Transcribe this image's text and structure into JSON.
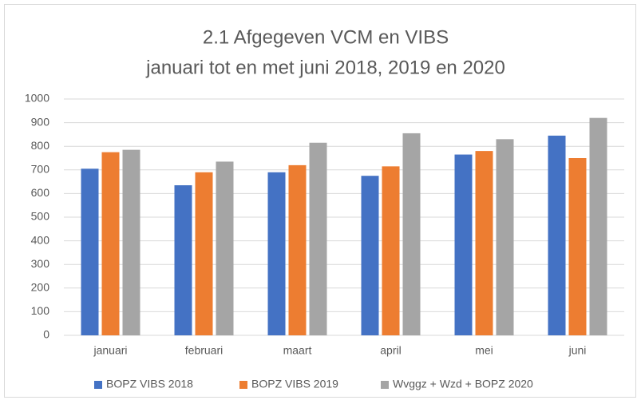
{
  "chart_data": {
    "type": "bar",
    "title": "2.1 Afgegeven VCM en VIBS",
    "subtitle": "januari tot en met juni 2018, 2019 en 2020",
    "categories": [
      "januari",
      "februari",
      "maart",
      "april",
      "mei",
      "juni"
    ],
    "series": [
      {
        "name": "BOPZ VIBS 2018",
        "color": "#4472c4",
        "values": [
          705,
          635,
          690,
          675,
          765,
          845
        ]
      },
      {
        "name": "BOPZ VIBS 2019",
        "color": "#ed7d31",
        "values": [
          775,
          690,
          720,
          715,
          780,
          750
        ]
      },
      {
        "name": "Wvggz + Wzd + BOPZ 2020",
        "color": "#a5a5a5",
        "values": [
          785,
          735,
          815,
          855,
          830,
          920
        ]
      }
    ],
    "ylim": [
      0,
      1000
    ],
    "yticks": [
      0,
      100,
      200,
      300,
      400,
      500,
      600,
      700,
      800,
      900,
      1000
    ],
    "grid": true,
    "legend": "bottom"
  }
}
